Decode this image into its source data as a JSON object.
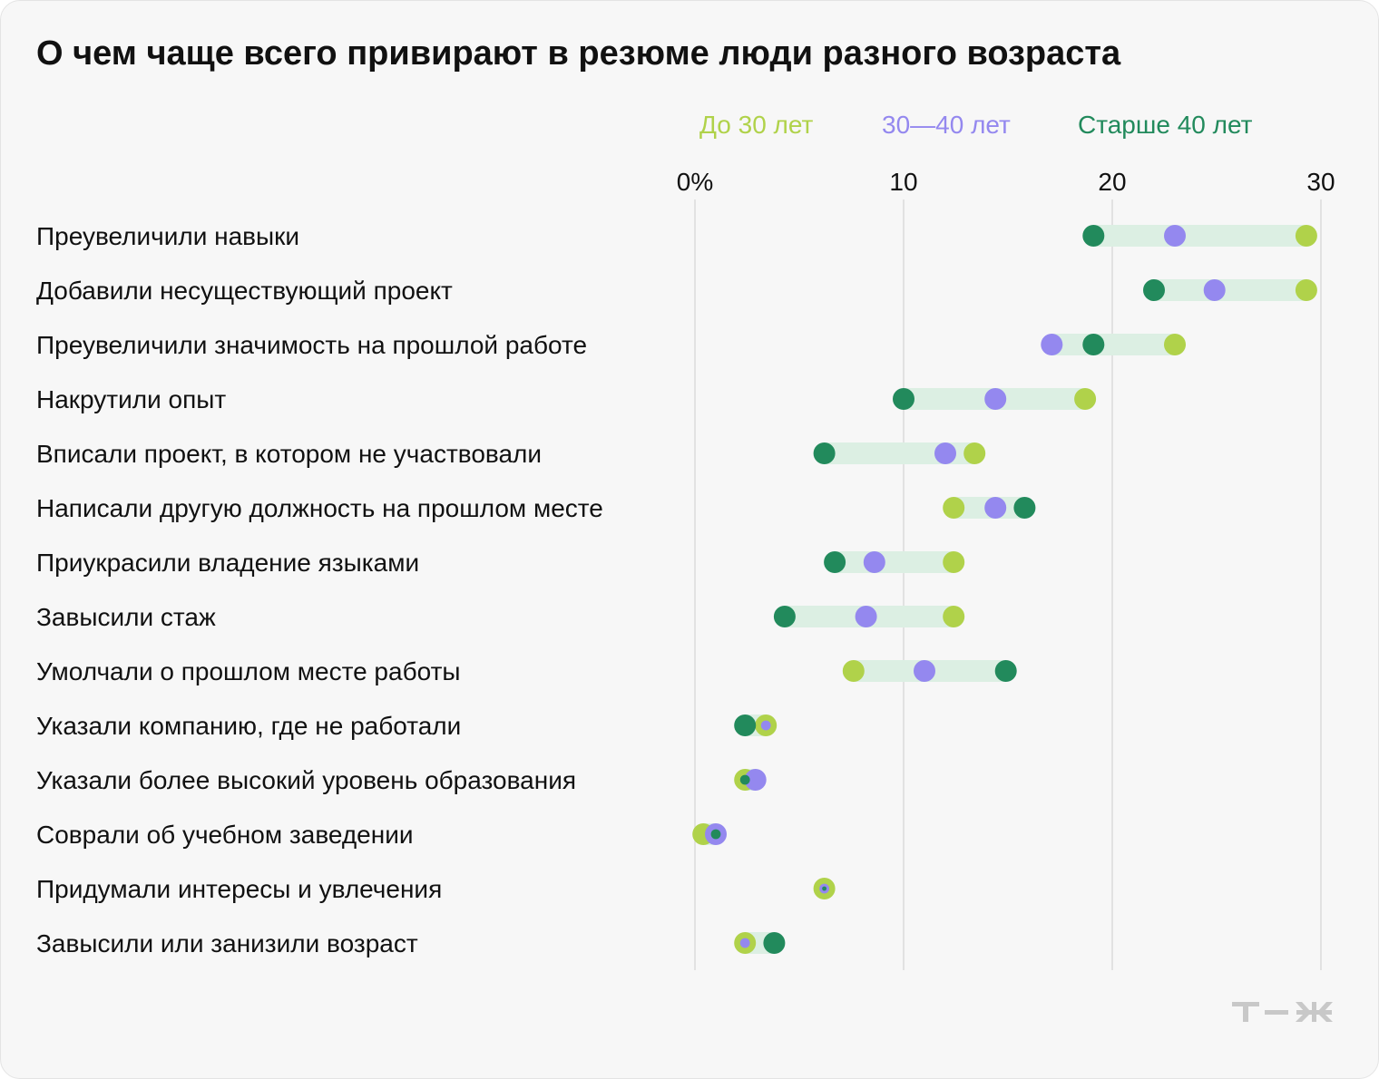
{
  "title": "О чем чаще всего привирают в резюме люди разного возраста",
  "legend": [
    {
      "label": "До 30 лет",
      "color": "#b0d24a"
    },
    {
      "label": "30—40 лет",
      "color": "#9488ef"
    },
    {
      "label": "Старше 40 лет",
      "color": "#228a5c"
    }
  ],
  "colors": {
    "range_band": "#dcefe3",
    "grid": "#dcdcdc",
    "logo": "#c8c8c8"
  },
  "logo_icon": "tzh-logo",
  "chart_data": {
    "type": "dot-range",
    "title": "О чем чаще всего привирают в резюме люди разного возраста",
    "xlim": [
      0,
      30
    ],
    "ticks": [
      0,
      10,
      20,
      30
    ],
    "tick_labels": [
      "0%",
      "10",
      "20",
      "30"
    ],
    "grid": true,
    "legend_position": "top-right",
    "series": [
      {
        "name": "До 30 лет",
        "key": "under30"
      },
      {
        "name": "30—40 лет",
        "key": "age30_40"
      },
      {
        "name": "Старше 40 лет",
        "key": "over40"
      }
    ],
    "categories": [
      "Преувеличили навыки",
      "Добавили несуществующий проект",
      "Преувеличили значимость на прошлой работе",
      "Накрутили опыт",
      "Вписали проект, в котором не участвовали",
      "Написали другую должность на прошлом месте",
      "Приукрасили владение языками",
      "Завысили стаж",
      "Умолчали о прошлом месте работы",
      "Указали компанию, где не работали",
      "Указали более высокий уровень образования",
      "Соврали об учебном заведении",
      "Придумали интересы и увлечения",
      "Завысили или занизили возраст"
    ],
    "under30": [
      29.3,
      29.3,
      23.0,
      18.7,
      13.4,
      12.4,
      12.4,
      12.4,
      7.6,
      3.4,
      2.4,
      0.4,
      6.2,
      2.4
    ],
    "age30_40": [
      23.0,
      24.9,
      17.1,
      14.4,
      12.0,
      14.4,
      8.6,
      8.2,
      11.0,
      3.4,
      2.9,
      1.0,
      6.2,
      2.4
    ],
    "over40": [
      19.1,
      22.0,
      19.1,
      10.0,
      6.2,
      15.8,
      6.7,
      4.3,
      14.9,
      2.4,
      2.4,
      1.0,
      6.2,
      3.8
    ]
  }
}
